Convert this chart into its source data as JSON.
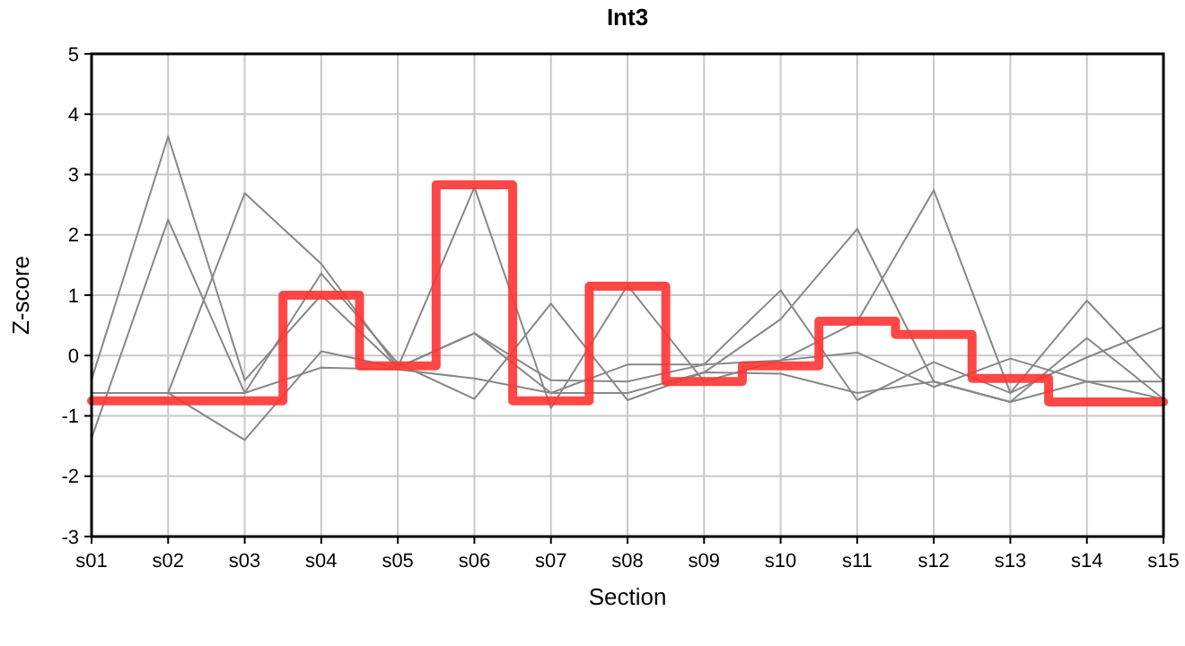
{
  "chart_data": {
    "type": "line",
    "title": "Int3",
    "xlabel": "Section",
    "ylabel": "Z-score",
    "categories": [
      "s01",
      "s02",
      "s03",
      "s04",
      "s05",
      "s06",
      "s07",
      "s08",
      "s09",
      "s10",
      "s11",
      "s12",
      "s13",
      "s14",
      "s15"
    ],
    "series": [
      {
        "color": "#888888",
        "values": [
          -0.4,
          3.63,
          -0.41,
          1.0,
          -0.2,
          0.37,
          -0.62,
          -0.15,
          -0.15,
          1.08,
          -0.74,
          -0.11,
          -0.62,
          0.91,
          -0.43
        ]
      },
      {
        "color": "#888888",
        "values": [
          -1.37,
          2.25,
          -0.62,
          1.36,
          -0.13,
          -0.72,
          0.86,
          -0.74,
          -0.28,
          0.6,
          2.1,
          -0.43,
          -0.77,
          0.29,
          -0.72
        ]
      },
      {
        "color": "#888888",
        "values": [
          -0.62,
          -0.62,
          2.69,
          1.52,
          -0.2,
          2.79,
          -0.87,
          1.16,
          -0.43,
          -0.08,
          0.56,
          2.74,
          -0.62,
          -0.03,
          0.47
        ]
      },
      {
        "color": "#888888",
        "values": [
          -0.62,
          -0.62,
          -1.4,
          0.07,
          -0.2,
          0.37,
          -0.41,
          -0.43,
          -0.15,
          -0.08,
          0.05,
          -0.52,
          -0.05,
          -0.43,
          -0.43
        ]
      },
      {
        "color": "#888888",
        "values": [
          -0.62,
          -0.62,
          -0.62,
          -0.2,
          -0.23,
          -0.38,
          -0.62,
          -0.62,
          -0.28,
          -0.3,
          -0.62,
          -0.43,
          -0.77,
          -0.43,
          -0.72
        ]
      },
      {
        "type": "step",
        "color": "#ff3333",
        "values": [
          -0.75,
          -0.75,
          -0.75,
          1.0,
          -0.17,
          2.83,
          -0.75,
          1.15,
          -0.43,
          -0.17,
          0.57,
          0.35,
          -0.38,
          -0.77,
          -0.77
        ]
      }
    ],
    "ylim": [
      -3,
      5
    ],
    "yticks": [
      -3,
      -2,
      -1,
      0,
      1,
      2,
      3,
      4,
      5
    ],
    "grid": true
  }
}
